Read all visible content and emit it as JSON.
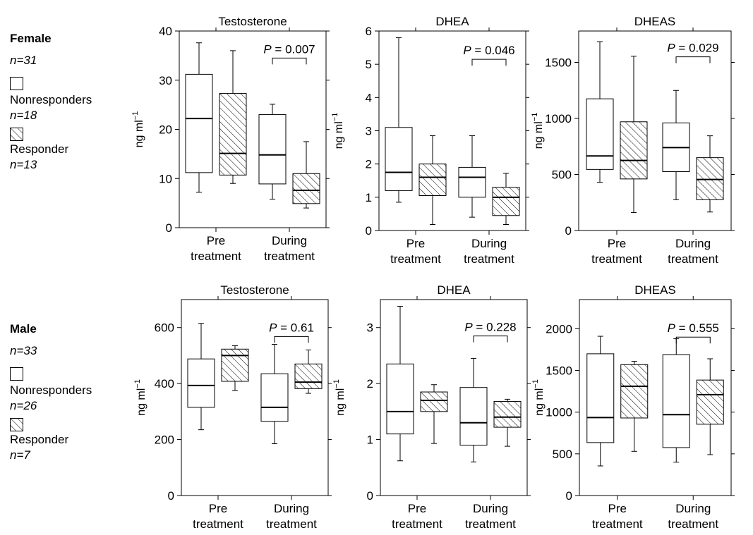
{
  "legend_groups": [
    {
      "group": "Female",
      "n_label": "n=31",
      "items": [
        {
          "name": "Nonresponders",
          "n": "n=18",
          "pattern": "open"
        },
        {
          "name": "Responder",
          "n": "n=13",
          "pattern": "hatched"
        }
      ]
    },
    {
      "group": "Male",
      "n_label": "n=33",
      "items": [
        {
          "name": "Nonresponders",
          "n": "n=26",
          "pattern": "open"
        },
        {
          "name": "Responder",
          "n": "n=7",
          "pattern": "hatched"
        }
      ]
    }
  ],
  "chart_data": [
    {
      "type": "box",
      "panel": "female-testosterone",
      "title": "Testosterone",
      "ylabel": "ng ml⁻¹",
      "ylim": [
        0,
        40
      ],
      "yticks": [
        0,
        10,
        20,
        30,
        40
      ],
      "categories": [
        "Pre treatment",
        "During treatment"
      ],
      "series": [
        {
          "name": "Nonresponders",
          "boxes": [
            {
              "min": 7.2,
              "q1": 11.2,
              "median": 22.2,
              "q3": 31.2,
              "max": 37.6
            },
            {
              "min": 5.8,
              "q1": 8.9,
              "median": 14.8,
              "q3": 23.0,
              "max": 25.1
            }
          ]
        },
        {
          "name": "Responder",
          "boxes": [
            {
              "min": 9.0,
              "q1": 10.7,
              "median": 15.1,
              "q3": 27.3,
              "max": 36.0
            },
            {
              "min": 4.0,
              "q1": 4.9,
              "median": 7.6,
              "q3": 11.0,
              "max": 17.5
            }
          ]
        }
      ],
      "annotation": {
        "text": "P = 0.007",
        "y": 34.5,
        "category": 1
      }
    },
    {
      "type": "box",
      "panel": "female-dhea",
      "title": "DHEA",
      "ylabel": "ng ml⁻¹",
      "ylim": [
        0,
        6
      ],
      "yticks": [
        0,
        1,
        2,
        3,
        4,
        5,
        6
      ],
      "categories": [
        "Pre treatment",
        "During treatment"
      ],
      "series": [
        {
          "name": "Nonresponders",
          "boxes": [
            {
              "min": 0.85,
              "q1": 1.2,
              "median": 1.75,
              "q3": 3.1,
              "max": 5.8
            },
            {
              "min": 0.4,
              "q1": 1.0,
              "median": 1.6,
              "q3": 1.9,
              "max": 2.85
            }
          ]
        },
        {
          "name": "Responder",
          "boxes": [
            {
              "min": 0.18,
              "q1": 1.05,
              "median": 1.6,
              "q3": 2.0,
              "max": 2.85
            },
            {
              "min": 0.18,
              "q1": 0.45,
              "median": 1.0,
              "q3": 1.3,
              "max": 1.72
            }
          ]
        }
      ],
      "annotation": {
        "text": "P = 0.046",
        "y": 5.15,
        "category": 1
      }
    },
    {
      "type": "box",
      "panel": "female-dheas",
      "title": "DHEAS",
      "ylabel": "ng ml⁻¹",
      "ylim": [
        0,
        1780
      ],
      "yticks": [
        0,
        500,
        1000,
        1500
      ],
      "categories": [
        "Pre treatment",
        "During treatment"
      ],
      "series": [
        {
          "name": "Nonresponders",
          "boxes": [
            {
              "min": 430,
              "q1": 545,
              "median": 665,
              "q3": 1175,
              "max": 1685
            },
            {
              "min": 275,
              "q1": 525,
              "median": 740,
              "q3": 960,
              "max": 1250
            }
          ]
        },
        {
          "name": "Responder",
          "boxes": [
            {
              "min": 160,
              "q1": 460,
              "median": 625,
              "q3": 970,
              "max": 1555
            },
            {
              "min": 165,
              "q1": 275,
              "median": 455,
              "q3": 650,
              "max": 845
            }
          ]
        }
      ],
      "annotation": {
        "text": "P = 0.029",
        "y": 1550,
        "category": 1
      }
    },
    {
      "type": "box",
      "panel": "male-testosterone",
      "title": "Testosterone",
      "ylabel": "ng ml⁻¹",
      "ylim": [
        0,
        700
      ],
      "yticks": [
        0,
        200,
        400,
        600
      ],
      "categories": [
        "Pre treatment",
        "During treatment"
      ],
      "series": [
        {
          "name": "Nonresponders",
          "boxes": [
            {
              "min": 235,
              "q1": 315,
              "median": 393,
              "q3": 488,
              "max": 615
            },
            {
              "min": 185,
              "q1": 265,
              "median": 315,
              "q3": 435,
              "max": 540
            }
          ]
        },
        {
          "name": "Responder",
          "boxes": [
            {
              "min": 375,
              "q1": 408,
              "median": 500,
              "q3": 523,
              "max": 535
            },
            {
              "min": 365,
              "q1": 382,
              "median": 405,
              "q3": 470,
              "max": 520
            }
          ]
        }
      ],
      "annotation": {
        "text": "P = 0.61",
        "y": 568,
        "category": 1
      }
    },
    {
      "type": "box",
      "panel": "male-dhea",
      "title": "DHEA",
      "ylabel": "ng ml⁻¹",
      "ylim": [
        0,
        3.5
      ],
      "yticks": [
        0,
        1,
        2,
        3
      ],
      "categories": [
        "Pre treatment",
        "During treatment"
      ],
      "series": [
        {
          "name": "Nonresponders",
          "boxes": [
            {
              "min": 0.62,
              "q1": 1.1,
              "median": 1.5,
              "q3": 2.35,
              "max": 3.38
            },
            {
              "min": 0.6,
              "q1": 0.9,
              "median": 1.3,
              "q3": 1.93,
              "max": 2.45
            }
          ]
        },
        {
          "name": "Responder",
          "boxes": [
            {
              "min": 0.93,
              "q1": 1.5,
              "median": 1.7,
              "q3": 1.85,
              "max": 1.98
            },
            {
              "min": 0.88,
              "q1": 1.22,
              "median": 1.4,
              "q3": 1.68,
              "max": 1.72
            }
          ]
        }
      ],
      "annotation": {
        "text": "P = 0.228",
        "y": 2.85,
        "category": 1
      }
    },
    {
      "type": "box",
      "panel": "male-dheas",
      "title": "DHEAS",
      "ylabel": "ng ml⁻¹",
      "ylim": [
        0,
        2350
      ],
      "yticks": [
        0,
        500,
        1000,
        1500,
        2000
      ],
      "categories": [
        "Pre treatment",
        "During treatment"
      ],
      "series": [
        {
          "name": "Nonresponders",
          "boxes": [
            {
              "min": 355,
              "q1": 635,
              "median": 935,
              "q3": 1700,
              "max": 1910
            },
            {
              "min": 400,
              "q1": 575,
              "median": 970,
              "q3": 1690,
              "max": 1880
            }
          ]
        },
        {
          "name": "Responder",
          "boxes": [
            {
              "min": 530,
              "q1": 930,
              "median": 1310,
              "q3": 1570,
              "max": 1610
            },
            {
              "min": 490,
              "q1": 855,
              "median": 1210,
              "q3": 1385,
              "max": 1640
            }
          ]
        }
      ],
      "annotation": {
        "text": "P = 0.555",
        "y": 1900,
        "category": 1
      }
    }
  ]
}
